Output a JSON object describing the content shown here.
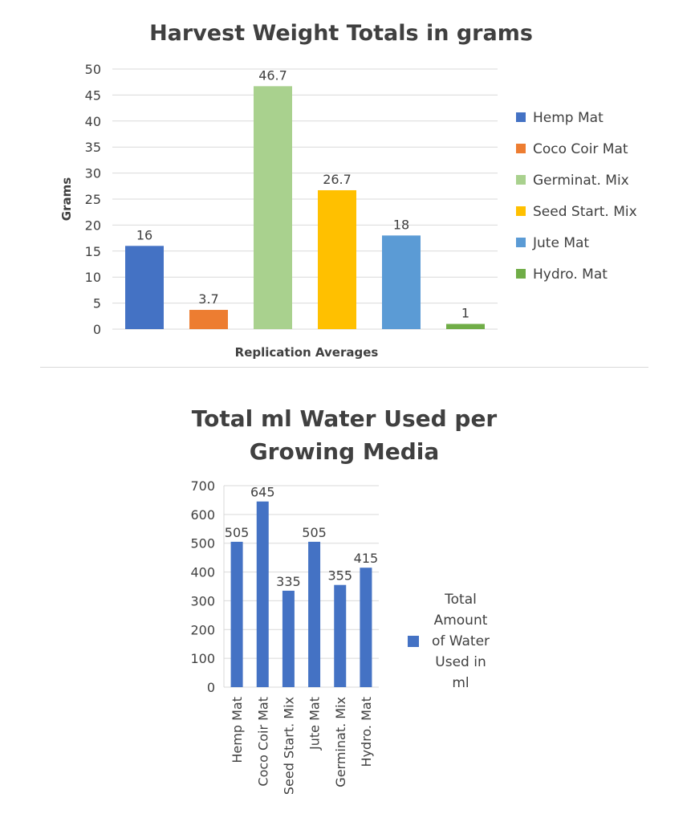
{
  "chart_data": [
    {
      "type": "bar",
      "title": "Harvest Weight Totals in grams",
      "xlabel": "Replication Averages",
      "ylabel": "Grams",
      "ylim": [
        0,
        50
      ],
      "yticks": [
        0,
        5,
        10,
        15,
        20,
        25,
        30,
        35,
        40,
        45,
        50
      ],
      "grid": true,
      "legend_position": "right",
      "series": [
        {
          "name": "Hemp Mat",
          "value": 16,
          "label": "16",
          "color": "#4472C4"
        },
        {
          "name": "Coco Coir Mat",
          "value": 3.7,
          "label": "3.7",
          "color": "#ED7D31"
        },
        {
          "name": "Germinat. Mix",
          "value": 46.7,
          "label": "46.7",
          "color": "#A9D18E"
        },
        {
          "name": "Seed Start. Mix",
          "value": 26.7,
          "label": "26.7",
          "color": "#FFC000"
        },
        {
          "name": "Jute Mat",
          "value": 18,
          "label": "18",
          "color": "#5B9BD5"
        },
        {
          "name": "Hydro. Mat",
          "value": 1,
          "label": "1",
          "color": "#70AD47"
        }
      ]
    },
    {
      "type": "bar",
      "title_lines": [
        "Total ml Water Used per",
        "Growing Media"
      ],
      "xlabel": "",
      "ylabel": "",
      "ylim": [
        0,
        700
      ],
      "yticks": [
        0,
        100,
        200,
        300,
        400,
        500,
        600,
        700
      ],
      "grid": true,
      "legend_position": "right",
      "categories": [
        "Hemp Mat",
        "Coco Coir Mat",
        "Seed Start. Mix",
        "Jute Mat",
        "Germinat. Mix",
        "Hydro. Mat"
      ],
      "series": [
        {
          "name": "Total Amount of Water Used in ml",
          "legend_lines": [
            "Total",
            "Amount",
            "of Water",
            "Used in",
            "ml"
          ],
          "color": "#4472C4",
          "values": [
            505,
            645,
            335,
            505,
            355,
            415
          ],
          "labels": [
            "505",
            "645",
            "335",
            "505",
            "355",
            "415"
          ]
        }
      ]
    }
  ]
}
